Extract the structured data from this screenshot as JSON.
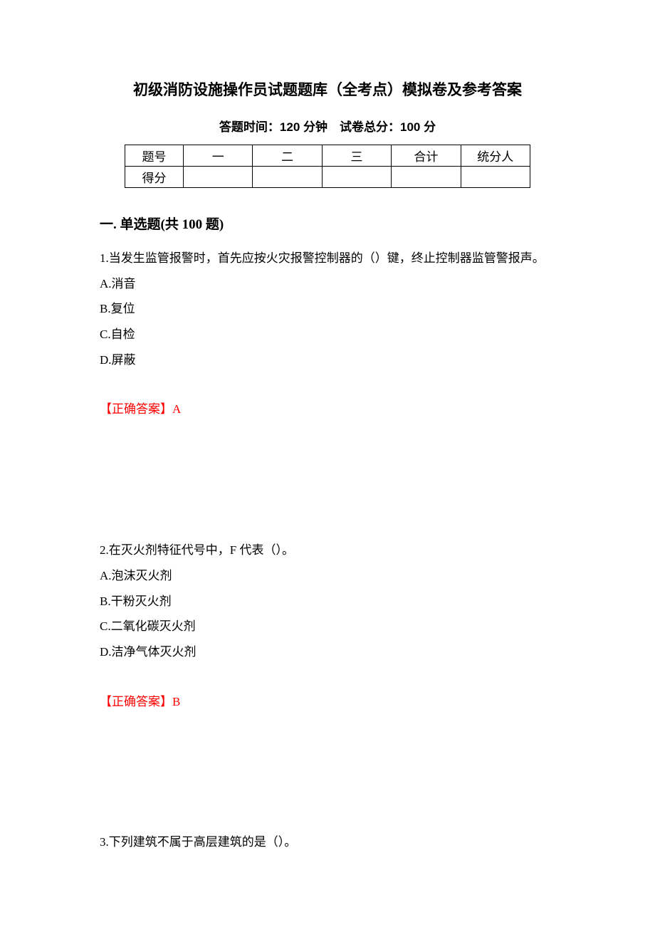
{
  "title": "初级消防设施操作员试题题库（全考点）模拟卷及参考答案",
  "subtitle": "答题时间：120 分钟　试卷总分：100 分",
  "score_table": {
    "rows": [
      [
        "题号",
        "一",
        "二",
        "三",
        "合计",
        "统分人"
      ],
      [
        "得分",
        "",
        "",
        "",
        "",
        ""
      ]
    ],
    "border_color": "#000000",
    "font_size": 17
  },
  "section": {
    "header": "一. 单选题(共 100 题)"
  },
  "questions": [
    {
      "text": "1.当发生监管报警时，首先应按火灾报警控制器的（）键，终止控制器监管警报声。",
      "options": [
        "A.消音",
        "B.复位",
        "C.自检",
        "D.屏蔽"
      ],
      "answer": "【正确答案】A"
    },
    {
      "text": "2.在灭火剂特征代号中，F 代表（）。",
      "options": [
        "A.泡沫灭火剂",
        "B.干粉灭火剂",
        "C.二氧化碳灭火剂",
        "D.洁净气体灭火剂"
      ],
      "answer": "【正确答案】B"
    },
    {
      "text": "3.下列建筑不属于高层建筑的是（）。",
      "options": [],
      "answer": ""
    }
  ],
  "colors": {
    "text": "#000000",
    "answer": "#ff0000",
    "background": "#ffffff"
  },
  "typography": {
    "title_fontsize": 21,
    "subtitle_fontsize": 17,
    "section_fontsize": 19,
    "body_fontsize": 17,
    "line_height": 2.1
  }
}
